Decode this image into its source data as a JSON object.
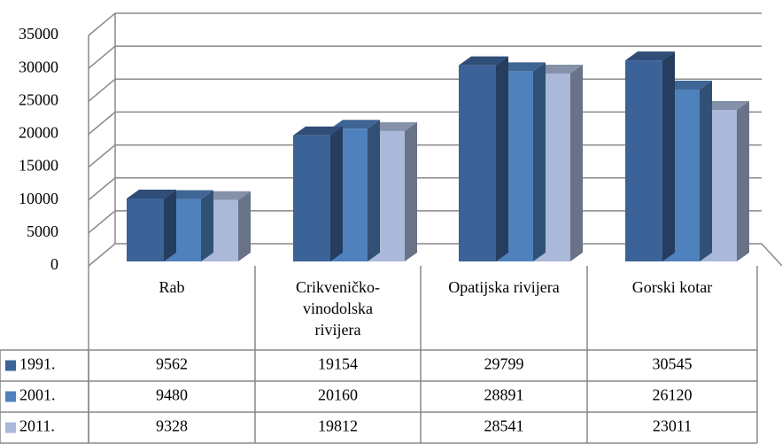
{
  "chart_data": {
    "type": "bar3d",
    "categories": [
      "Rab",
      "Crikveničko-vinodolska rivijera",
      "Opatijska rivijera",
      "Gorski kotar"
    ],
    "series": [
      {
        "name": "1991.",
        "color": "#3c6398",
        "values": [
          9562,
          19154,
          29799,
          30545
        ]
      },
      {
        "name": "2001.",
        "color": "#4f81bd",
        "values": [
          9480,
          20160,
          28891,
          26120
        ]
      },
      {
        "name": "2011.",
        "color": "#aab9d9",
        "values": [
          9328,
          19812,
          28541,
          23011
        ]
      }
    ],
    "ylim": [
      0,
      35000
    ],
    "yticks": [
      0,
      5000,
      10000,
      15000,
      20000,
      25000,
      30000,
      35000
    ],
    "grid": true,
    "data_table": true
  }
}
